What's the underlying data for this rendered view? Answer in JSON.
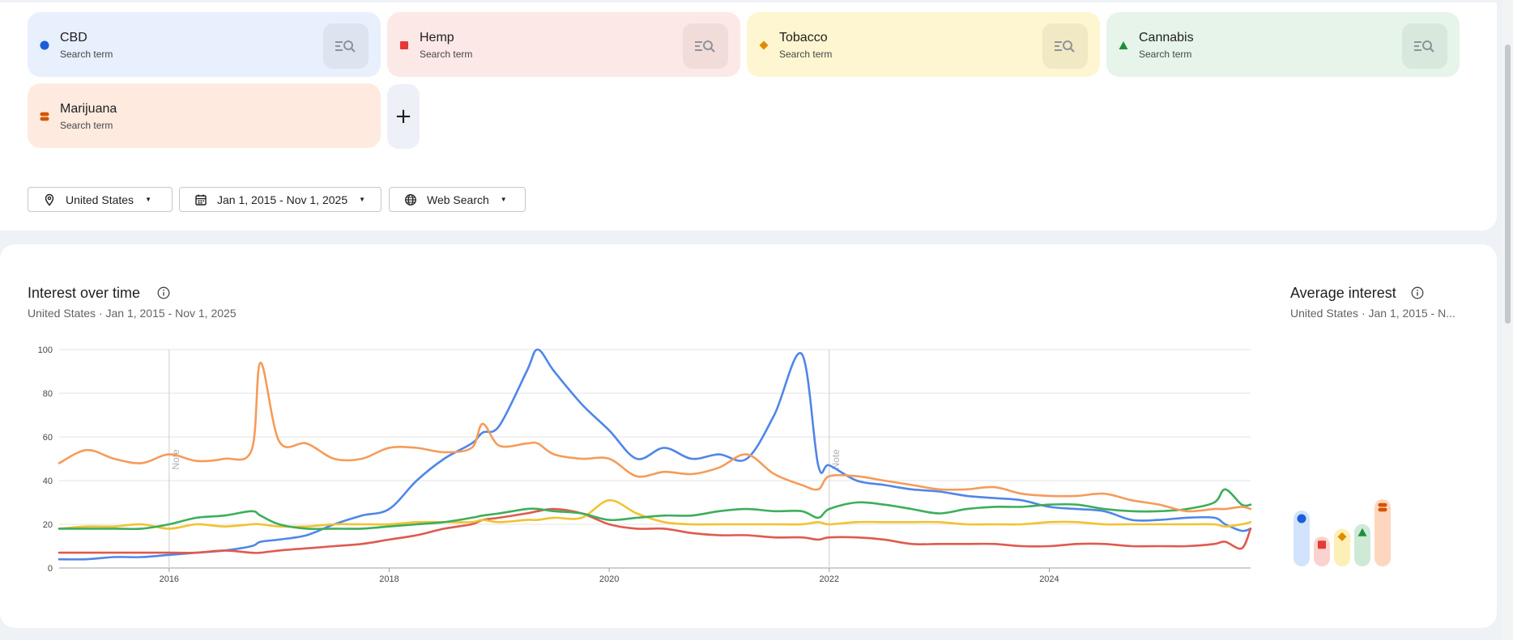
{
  "terms": [
    {
      "name": "CBD",
      "sub": "Search term",
      "color": "#1a5fd8",
      "bg": "#e8effd",
      "btn": "#dde4ef",
      "marker": "circle"
    },
    {
      "name": "Hemp",
      "sub": "Search term",
      "color": "#e53935",
      "bg": "#fce8e6",
      "btn": "#f1dcda",
      "marker": "square"
    },
    {
      "name": "Tobacco",
      "sub": "Search term",
      "color": "#e08b00",
      "bg": "#fef6d0",
      "btn": "#f1e8c4",
      "marker": "diamond"
    },
    {
      "name": "Cannabis",
      "sub": "Search term",
      "color": "#1e8e3e",
      "bg": "#e6f4ea",
      "btn": "#d9e8dd",
      "marker": "triangle"
    },
    {
      "name": "Marijuana",
      "sub": "Search term",
      "color": "#d35400",
      "bg": "#feeadf",
      "btn": "#fde5d8",
      "marker": "hourglass"
    }
  ],
  "filters": {
    "location": "United States",
    "date_range": "Jan 1, 2015 - Nov 1, 2025",
    "search_type": "Web Search"
  },
  "interest": {
    "title": "Interest over time",
    "subtitle": "United States · Jan 1, 2015 - Nov 1, 2025"
  },
  "average": {
    "title": "Average interest",
    "subtitle": "United States · Jan 1, 2015 - N..."
  },
  "chart_data": {
    "type": "line",
    "title": "Interest over time",
    "xlabel": "",
    "ylabel": "",
    "xlim": [
      2015.0,
      2025.83
    ],
    "ylim": [
      0,
      100
    ],
    "yticks": [
      0,
      20,
      40,
      60,
      80,
      100
    ],
    "xticks": [
      2016,
      2018,
      2020,
      2022,
      2024
    ],
    "notes": [
      {
        "x": 2016.0,
        "label": "Note"
      },
      {
        "x": 2022.0,
        "label": "Note"
      }
    ],
    "grid": true,
    "legend": "none",
    "x": [
      2015.0,
      2015.25,
      2015.5,
      2015.75,
      2016.0,
      2016.25,
      2016.5,
      2016.75,
      2016.83,
      2017.0,
      2017.25,
      2017.5,
      2017.75,
      2018.0,
      2018.25,
      2018.5,
      2018.75,
      2018.85,
      2019.0,
      2019.25,
      2019.35,
      2019.5,
      2019.75,
      2020.0,
      2020.25,
      2020.5,
      2020.75,
      2021.0,
      2021.25,
      2021.5,
      2021.75,
      2021.9,
      2022.0,
      2022.25,
      2022.5,
      2022.75,
      2023.0,
      2023.25,
      2023.5,
      2023.75,
      2024.0,
      2024.25,
      2024.5,
      2024.75,
      2025.0,
      2025.25,
      2025.5,
      2025.6,
      2025.75,
      2025.83
    ],
    "series": [
      {
        "name": "CBD",
        "color": "#4f86e8",
        "values": [
          4,
          4,
          5,
          5,
          6,
          7,
          8,
          10,
          12,
          13,
          15,
          20,
          24,
          27,
          40,
          50,
          57,
          62,
          65,
          90,
          100,
          90,
          75,
          63,
          50,
          55,
          50,
          52,
          50,
          70,
          98,
          47,
          47,
          40,
          38,
          36,
          35,
          33,
          32,
          31,
          28,
          27,
          26,
          22,
          22,
          23,
          23,
          20,
          17,
          18
        ]
      },
      {
        "name": "Hemp",
        "color": "#e05a4e",
        "values": [
          7,
          7,
          7,
          7,
          7,
          7,
          8,
          7,
          7,
          8,
          9,
          10,
          11,
          13,
          15,
          18,
          20,
          22,
          23,
          25,
          26,
          27,
          25,
          20,
          18,
          18,
          16,
          15,
          15,
          14,
          14,
          13,
          14,
          14,
          13,
          11,
          11,
          11,
          11,
          10,
          10,
          11,
          11,
          10,
          10,
          10,
          11,
          12,
          9,
          18
        ]
      },
      {
        "name": "Tobacco",
        "color": "#f2c230",
        "values": [
          18,
          19,
          19,
          20,
          18,
          20,
          19,
          20,
          20,
          19,
          19,
          20,
          20,
          20,
          21,
          21,
          21,
          22,
          21,
          22,
          22,
          23,
          23,
          31,
          25,
          21,
          20,
          20,
          20,
          20,
          20,
          21,
          20,
          21,
          21,
          21,
          21,
          20,
          20,
          20,
          21,
          21,
          20,
          20,
          20,
          20,
          20,
          19,
          20,
          21
        ]
      },
      {
        "name": "Cannabis",
        "color": "#3dae5b",
        "values": [
          18,
          18,
          18,
          18,
          20,
          23,
          24,
          26,
          24,
          20,
          18,
          18,
          18,
          19,
          20,
          21,
          23,
          24,
          25,
          27,
          27,
          26,
          25,
          22,
          23,
          24,
          24,
          26,
          27,
          26,
          26,
          23,
          27,
          30,
          29,
          27,
          25,
          27,
          28,
          28,
          29,
          29,
          27,
          26,
          26,
          27,
          30,
          36,
          29,
          29
        ]
      },
      {
        "name": "Marijuana",
        "color": "#f59b5a",
        "values": [
          48,
          54,
          50,
          48,
          52,
          49,
          50,
          54,
          94,
          58,
          57,
          50,
          50,
          55,
          55,
          53,
          55,
          66,
          56,
          57,
          57,
          52,
          50,
          50,
          42,
          44,
          43,
          46,
          52,
          43,
          38,
          36,
          42,
          42,
          40,
          38,
          36,
          36,
          37,
          34,
          33,
          33,
          34,
          31,
          29,
          26,
          27,
          27,
          28,
          27
        ]
      }
    ],
    "average_interest": {
      "type": "bar",
      "categories": [
        "CBD",
        "Hemp",
        "Tobacco",
        "Cannabis",
        "Marijuana"
      ],
      "values": [
        35,
        12,
        19,
        23,
        45
      ],
      "ylim": [
        0,
        100
      ]
    }
  }
}
